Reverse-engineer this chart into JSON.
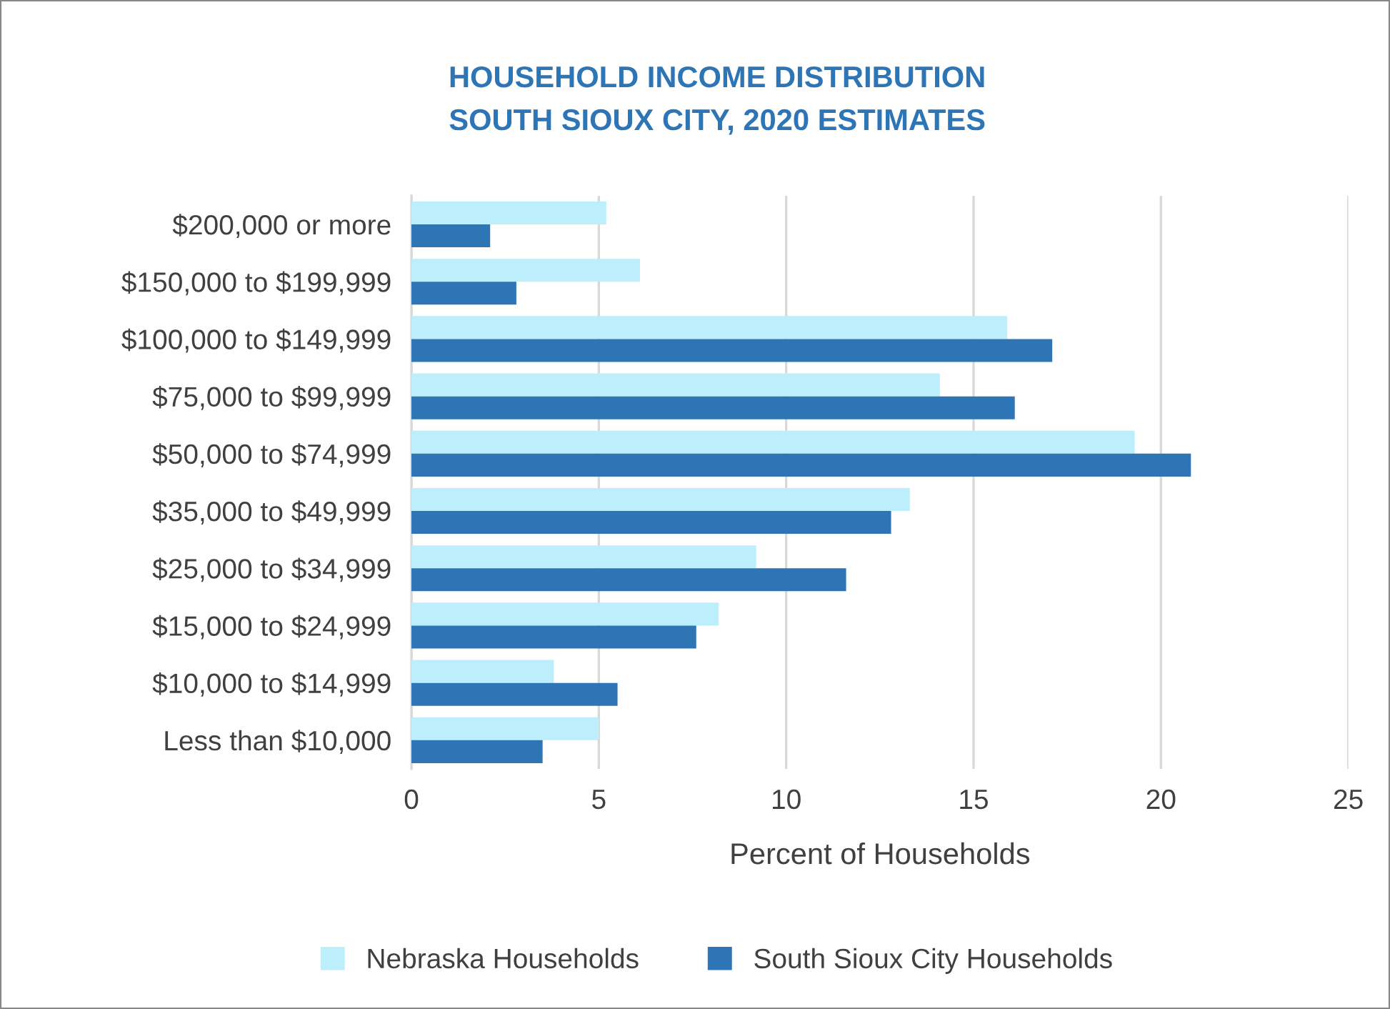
{
  "chart_data": {
    "type": "bar",
    "orientation": "horizontal",
    "title": "HOUSEHOLD INCOME DISTRIBUTION\nSOUTH SIOUX CITY, 2020 ESTIMATES",
    "xlabel": "Percent of Households",
    "categories": [
      "$200,000 or more",
      "$150,000 to $199,999",
      "$100,000 to $149,999",
      "$75,000 to $99,999",
      "$50,000 to $74,999",
      "$35,000 to $49,999",
      "$25,000 to $34,999",
      "$15,000 to $24,999",
      "$10,000 to $14,999",
      "Less than $10,000"
    ],
    "series": [
      {
        "name": "Nebraska Households",
        "color": "#bdeefb",
        "values": [
          5.2,
          6.1,
          15.9,
          14.1,
          19.3,
          13.3,
          9.2,
          8.2,
          3.8,
          5.0
        ]
      },
      {
        "name": "South Sioux City Households",
        "color": "#2e75b6",
        "values": [
          2.1,
          2.8,
          17.1,
          16.1,
          20.8,
          12.8,
          11.6,
          7.6,
          5.5,
          3.5
        ]
      }
    ],
    "xlim": [
      0,
      25
    ],
    "xticks": [
      0,
      5,
      10,
      15,
      20,
      25
    ],
    "grid": "x",
    "legend": "bottom"
  }
}
